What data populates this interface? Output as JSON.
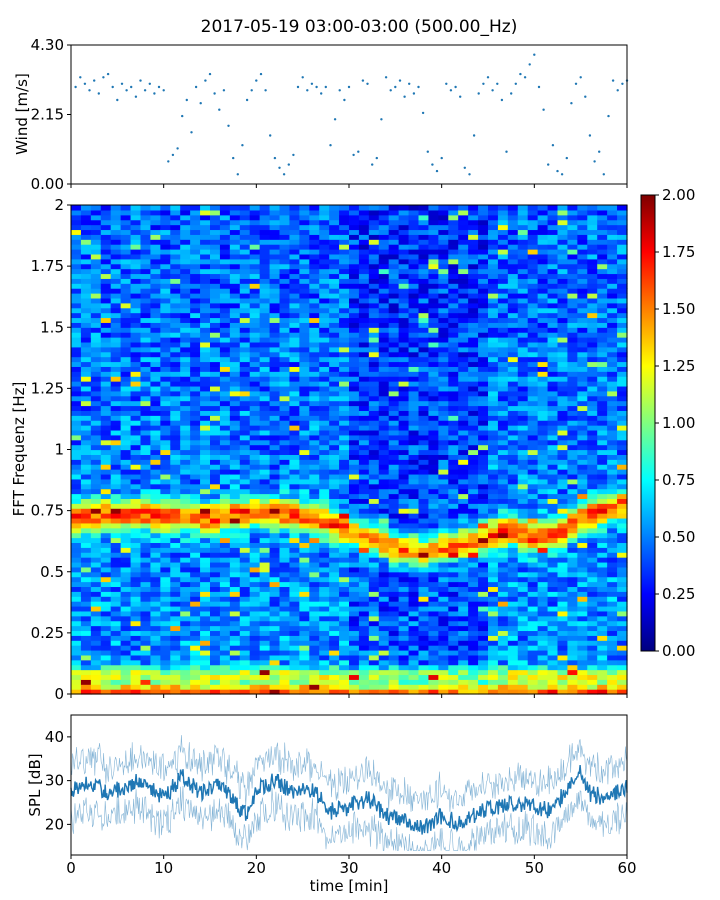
{
  "title": "2017-05-19 03:00-03:00 (500.00_Hz)",
  "chart_data": [
    {
      "id": "wind",
      "type": "scatter",
      "ylabel": "Wind [m/s]",
      "xlim": [
        0,
        60
      ],
      "ylim": [
        0,
        4.3
      ],
      "yticks": [
        "0.00",
        "2.15",
        "4.30"
      ],
      "points": [
        [
          0.5,
          3.0
        ],
        [
          1.0,
          3.3
        ],
        [
          1.5,
          3.1
        ],
        [
          2.0,
          2.9
        ],
        [
          2.5,
          3.2
        ],
        [
          3.0,
          2.8
        ],
        [
          3.5,
          3.3
        ],
        [
          4.0,
          3.4
        ],
        [
          4.5,
          3.0
        ],
        [
          5.0,
          2.6
        ],
        [
          5.5,
          3.1
        ],
        [
          6.0,
          2.9
        ],
        [
          6.5,
          3.0
        ],
        [
          7.0,
          2.7
        ],
        [
          7.5,
          3.2
        ],
        [
          8.0,
          2.9
        ],
        [
          8.5,
          3.1
        ],
        [
          9.0,
          2.8
        ],
        [
          9.5,
          3.0
        ],
        [
          10.0,
          2.9
        ],
        [
          10.5,
          0.7
        ],
        [
          11.0,
          0.9
        ],
        [
          11.5,
          1.1
        ],
        [
          12.0,
          2.1
        ],
        [
          12.5,
          2.6
        ],
        [
          13.0,
          1.6
        ],
        [
          13.5,
          3.0
        ],
        [
          14.0,
          2.5
        ],
        [
          14.5,
          3.2
        ],
        [
          15.0,
          3.4
        ],
        [
          15.5,
          2.8
        ],
        [
          16.0,
          2.3
        ],
        [
          16.5,
          2.9
        ],
        [
          17.0,
          1.8
        ],
        [
          17.5,
          0.8
        ],
        [
          18.0,
          0.3
        ],
        [
          18.5,
          1.2
        ],
        [
          19.0,
          2.6
        ],
        [
          19.5,
          2.9
        ],
        [
          20.0,
          3.2
        ],
        [
          20.5,
          3.4
        ],
        [
          21.0,
          2.9
        ],
        [
          21.5,
          1.5
        ],
        [
          22.0,
          0.8
        ],
        [
          22.5,
          0.5
        ],
        [
          23.0,
          0.3
        ],
        [
          23.5,
          0.6
        ],
        [
          24.0,
          0.9
        ],
        [
          24.5,
          3.0
        ],
        [
          25.0,
          3.3
        ],
        [
          25.5,
          2.9
        ],
        [
          26.0,
          3.1
        ],
        [
          26.5,
          3.0
        ],
        [
          27.0,
          2.8
        ],
        [
          27.5,
          3.0
        ],
        [
          28.0,
          1.2
        ],
        [
          28.5,
          2.0
        ],
        [
          29.0,
          2.9
        ],
        [
          29.5,
          2.6
        ],
        [
          30.0,
          3.0
        ],
        [
          30.5,
          0.9
        ],
        [
          31.0,
          1.0
        ],
        [
          31.5,
          3.2
        ],
        [
          32.0,
          3.1
        ],
        [
          32.5,
          0.6
        ],
        [
          33.0,
          0.8
        ],
        [
          33.5,
          2.0
        ],
        [
          34.0,
          3.3
        ],
        [
          34.5,
          2.9
        ],
        [
          35.0,
          3.0
        ],
        [
          35.5,
          3.2
        ],
        [
          36.0,
          2.7
        ],
        [
          36.5,
          3.1
        ],
        [
          37.0,
          2.8
        ],
        [
          37.5,
          3.0
        ],
        [
          38.0,
          2.2
        ],
        [
          38.5,
          1.0
        ],
        [
          39.0,
          0.6
        ],
        [
          39.5,
          0.4
        ],
        [
          40.0,
          0.8
        ],
        [
          40.5,
          3.1
        ],
        [
          41.0,
          2.9
        ],
        [
          41.5,
          3.0
        ],
        [
          42.0,
          2.7
        ],
        [
          42.5,
          0.5
        ],
        [
          43.0,
          0.3
        ],
        [
          43.5,
          1.5
        ],
        [
          44.0,
          2.8
        ],
        [
          44.5,
          3.1
        ],
        [
          45.0,
          3.3
        ],
        [
          45.5,
          2.9
        ],
        [
          46.0,
          3.1
        ],
        [
          46.5,
          2.6
        ],
        [
          47.0,
          1.0
        ],
        [
          47.5,
          2.8
        ],
        [
          48.0,
          3.1
        ],
        [
          48.5,
          3.4
        ],
        [
          49.0,
          3.3
        ],
        [
          49.5,
          3.7
        ],
        [
          50.0,
          4.0
        ],
        [
          50.5,
          3.0
        ],
        [
          51.0,
          2.3
        ],
        [
          51.5,
          0.6
        ],
        [
          52.0,
          1.2
        ],
        [
          52.5,
          0.4
        ],
        [
          53.0,
          0.3
        ],
        [
          53.5,
          0.8
        ],
        [
          54.0,
          2.5
        ],
        [
          54.5,
          3.1
        ],
        [
          55.0,
          3.3
        ],
        [
          55.5,
          2.7
        ],
        [
          56.0,
          1.5
        ],
        [
          56.5,
          0.7
        ],
        [
          57.0,
          1.0
        ],
        [
          57.5,
          0.3
        ],
        [
          58.0,
          2.1
        ],
        [
          58.5,
          3.2
        ],
        [
          59.0,
          2.9
        ],
        [
          59.5,
          3.1
        ],
        [
          60.0,
          3.2
        ]
      ]
    },
    {
      "id": "spectrogram",
      "type": "heatmap",
      "ylabel": "FFT Frequenz [Hz]",
      "xlim": [
        0,
        60
      ],
      "ylim": [
        0,
        2
      ],
      "yticks": [
        "0",
        "0.25",
        "0.5",
        "0.75",
        "1",
        "1.25",
        "1.5",
        "1.75",
        "2"
      ],
      "colormap": "jet",
      "colorbar": {
        "range": [
          0,
          2
        ],
        "ticks": [
          "0.00",
          "0.25",
          "0.50",
          "0.75",
          "1.00",
          "1.25",
          "1.50",
          "1.75",
          "2.00"
        ]
      },
      "band_center_hz": [
        [
          0,
          0.72
        ],
        [
          5,
          0.74
        ],
        [
          10,
          0.73
        ],
        [
          15,
          0.72
        ],
        [
          20,
          0.75
        ],
        [
          25,
          0.73
        ],
        [
          28,
          0.7
        ],
        [
          32,
          0.64
        ],
        [
          35,
          0.6
        ],
        [
          38,
          0.58
        ],
        [
          40,
          0.6
        ],
        [
          43,
          0.62
        ],
        [
          46,
          0.66
        ],
        [
          48,
          0.67
        ],
        [
          50,
          0.64
        ],
        [
          53,
          0.66
        ],
        [
          55,
          0.72
        ],
        [
          58,
          0.76
        ],
        [
          60,
          0.78
        ]
      ]
    },
    {
      "id": "spl",
      "type": "line",
      "xlabel": "time [min]",
      "ylabel": "SPL [dB]",
      "xlim": [
        0,
        60
      ],
      "ylim": [
        13,
        45
      ],
      "yticks": [
        "20",
        "30",
        "40"
      ],
      "xticks": [
        "0",
        "10",
        "20",
        "30",
        "40",
        "50",
        "60"
      ],
      "trend": [
        [
          0,
          28
        ],
        [
          2,
          30
        ],
        [
          4,
          27
        ],
        [
          6,
          29
        ],
        [
          8,
          30
        ],
        [
          10,
          26
        ],
        [
          12,
          31
        ],
        [
          14,
          27
        ],
        [
          16,
          29
        ],
        [
          18,
          24
        ],
        [
          19,
          22
        ],
        [
          20,
          28
        ],
        [
          22,
          30
        ],
        [
          24,
          27
        ],
        [
          26,
          28
        ],
        [
          28,
          23
        ],
        [
          30,
          24
        ],
        [
          32,
          26
        ],
        [
          34,
          22
        ],
        [
          36,
          21
        ],
        [
          38,
          19
        ],
        [
          40,
          22
        ],
        [
          42,
          20
        ],
        [
          44,
          23
        ],
        [
          46,
          24
        ],
        [
          48,
          25
        ],
        [
          50,
          24
        ],
        [
          52,
          23
        ],
        [
          54,
          30
        ],
        [
          55,
          33
        ],
        [
          56,
          27
        ],
        [
          58,
          26
        ],
        [
          60,
          29
        ]
      ]
    }
  ]
}
